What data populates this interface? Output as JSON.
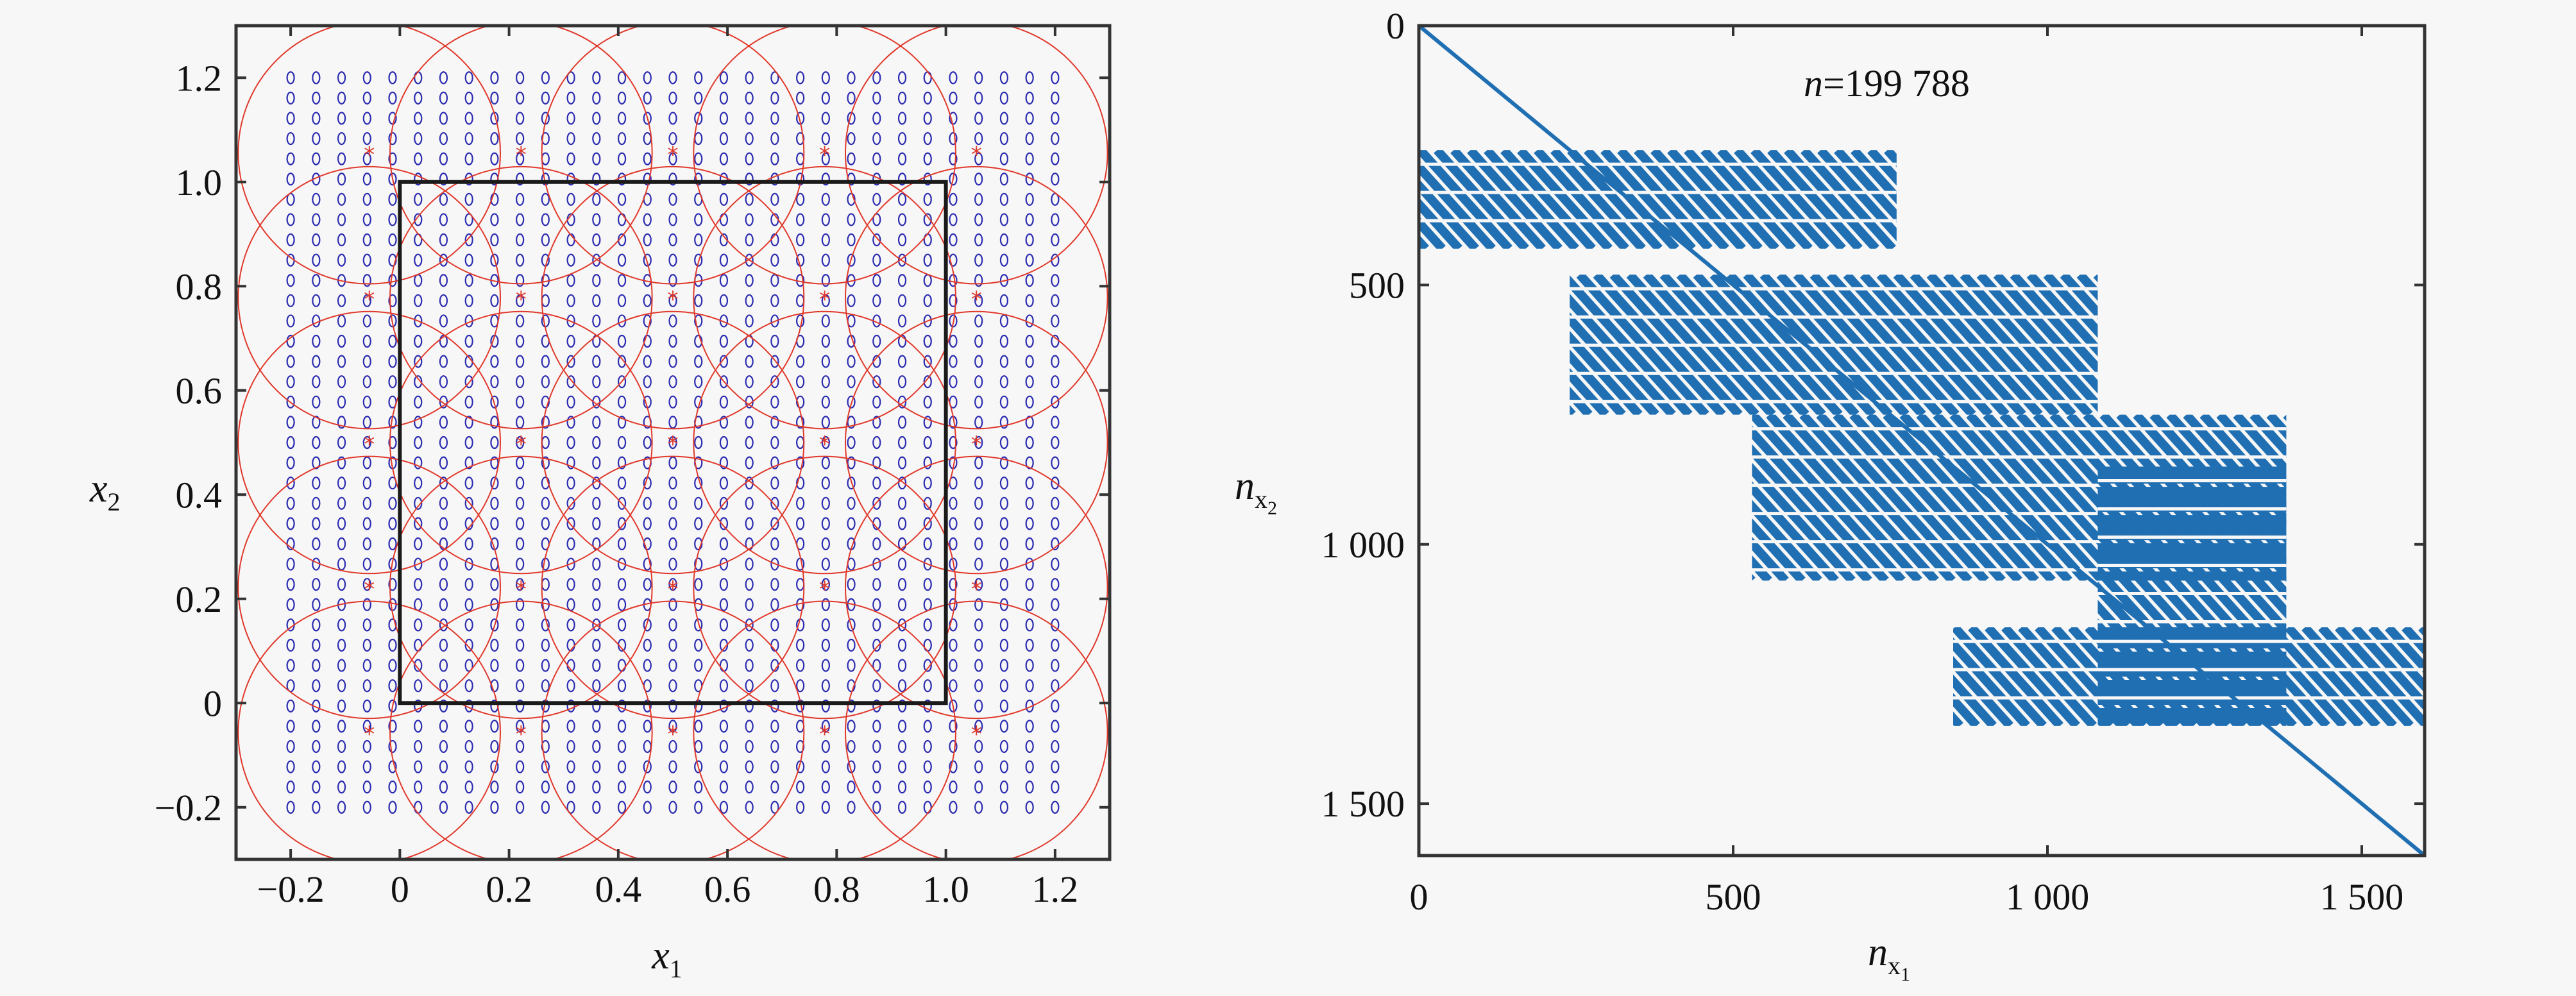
{
  "chart_data": [
    {
      "type": "scatter",
      "x_axis": {
        "symbol": "x",
        "subscript": "1",
        "range": [
          -0.3,
          1.3
        ],
        "ticks": [
          -0.2,
          0,
          0.2,
          0.4,
          0.6,
          0.8,
          1.0,
          1.2
        ],
        "tick_labels": [
          "−0.2",
          "0",
          "0.2",
          "0.4",
          "0.6",
          "0.8",
          "1.0",
          "1.2"
        ]
      },
      "y_axis": {
        "symbol": "x",
        "subscript": "2",
        "range": [
          -0.3,
          1.3
        ],
        "ticks": [
          -0.2,
          0,
          0.2,
          0.4,
          0.6,
          0.8,
          1.0,
          1.2
        ],
        "tick_labels": [
          "−0.2",
          "0",
          "0.2",
          "0.4",
          "0.6",
          "0.8",
          "1.0",
          "1.2"
        ]
      },
      "domain_box": {
        "x": [
          0,
          1
        ],
        "y": [
          0,
          1
        ],
        "color": "#1a1a1a"
      },
      "node_grid": {
        "marker": "o",
        "color": "#2b2bb0",
        "x_range": [
          -0.2,
          1.2
        ],
        "y_range": [
          -0.2,
          1.2
        ],
        "count_x": 31,
        "count_y": 37
      },
      "patch_centers": {
        "marker": "*",
        "color": "#e0392b",
        "x": [
          -0.056,
          0.222,
          0.5,
          0.778,
          1.056
        ],
        "y": [
          -0.056,
          0.222,
          0.5,
          0.778,
          1.056
        ]
      },
      "patch_radius": 0.24,
      "circle_color": "#e0392b"
    },
    {
      "type": "heatmap",
      "annotation": {
        "variable": "n",
        "text": "=199 788"
      },
      "x_axis": {
        "symbol": "n",
        "subscript": "x",
        "subscript2": "1",
        "range": [
          0,
          1600
        ],
        "ticks": [
          0,
          500,
          1000,
          1500
        ],
        "tick_labels": [
          "0",
          "500",
          "1 000",
          "1 500"
        ]
      },
      "y_axis": {
        "symbol": "n",
        "subscript": "x",
        "subscript2": "2",
        "range": [
          0,
          1600
        ],
        "reversed": true,
        "ticks": [
          0,
          500,
          1000,
          1500
        ],
        "tick_labels": [
          "0",
          "500",
          "1 000",
          "1 500"
        ]
      },
      "color": "#1f6fb2",
      "diagonal": {
        "from": [
          0,
          0
        ],
        "to": [
          1600,
          1600
        ]
      },
      "blocks": [
        {
          "rows": [
            240,
            430
          ],
          "cols": [
            0,
            760
          ]
        },
        {
          "rows": [
            480,
            750
          ],
          "cols": [
            240,
            1080
          ]
        },
        {
          "rows": [
            750,
            1070
          ],
          "cols": [
            530,
            1380
          ]
        },
        {
          "rows": [
            850,
            1350
          ],
          "cols": [
            1080,
            1380
          ]
        },
        {
          "rows": [
            1160,
            1350
          ],
          "cols": [
            850,
            1600
          ]
        }
      ]
    }
  ]
}
